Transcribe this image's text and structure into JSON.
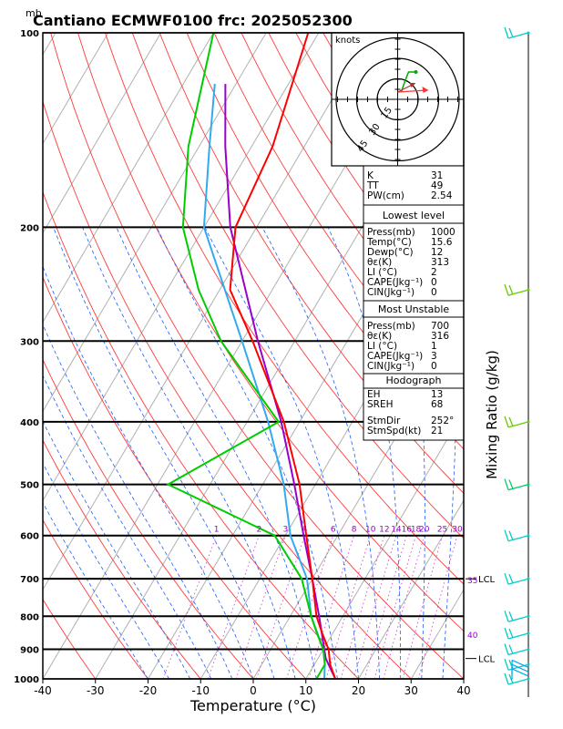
{
  "header": {
    "unit_label": "mb",
    "title": "Cantiano ECMWF0100  frc: 2025052300"
  },
  "chart_data": {
    "type": "skewt",
    "xlabel": "Temperature (°C)",
    "ylabel": "Mixing Ratio (g/kg)",
    "xlim": [
      -40,
      40
    ],
    "ylim": [
      1000,
      100
    ],
    "x_ticks": [
      -40,
      -30,
      -20,
      -10,
      0,
      10,
      20,
      30,
      40
    ],
    "pressure_levels": [
      1000,
      900,
      800,
      700,
      600,
      500,
      400,
      300,
      200,
      100
    ],
    "mixing_ratio_labels": [
      "1",
      "2",
      "3",
      "4",
      "6",
      "8",
      "10",
      "12",
      "14",
      "16",
      "18",
      "20",
      "25",
      "30"
    ],
    "extra_labels": {
      "theta_35": "35",
      "theta_40": "40"
    },
    "lcl_label": "LCL",
    "temperature_profile": {
      "color": "#ff0000",
      "points": [
        [
          1000,
          15.6
        ],
        [
          950,
          13
        ],
        [
          900,
          11
        ],
        [
          850,
          8
        ],
        [
          800,
          5
        ],
        [
          700,
          0
        ],
        [
          600,
          -6
        ],
        [
          500,
          -13
        ],
        [
          400,
          -23
        ],
        [
          300,
          -38
        ],
        [
          250,
          -48
        ],
        [
          200,
          -54
        ],
        [
          150,
          -56
        ],
        [
          100,
          -62
        ]
      ]
    },
    "dewpoint_profile": {
      "color": "#00cc00",
      "points": [
        [
          1000,
          12
        ],
        [
          950,
          12
        ],
        [
          900,
          10
        ],
        [
          850,
          7
        ],
        [
          800,
          4
        ],
        [
          700,
          -2
        ],
        [
          600,
          -12
        ],
        [
          500,
          -38
        ],
        [
          400,
          -24
        ],
        [
          300,
          -44
        ],
        [
          250,
          -54
        ],
        [
          200,
          -64
        ],
        [
          150,
          -72
        ],
        [
          100,
          -80
        ]
      ]
    },
    "parcel_profile": {
      "color": "#9900cc",
      "points": [
        [
          1000,
          15.6
        ],
        [
          930,
          11.5
        ],
        [
          900,
          10.2
        ],
        [
          800,
          5.5
        ],
        [
          700,
          0.0
        ],
        [
          600,
          -6.5
        ],
        [
          500,
          -14
        ],
        [
          400,
          -23.5
        ],
        [
          300,
          -37
        ],
        [
          200,
          -55
        ],
        [
          150,
          -65
        ],
        [
          120,
          -72
        ]
      ]
    },
    "wetbulb_profile": {
      "color": "#33aaee",
      "points": [
        [
          1000,
          13.5
        ],
        [
          950,
          12
        ],
        [
          900,
          10
        ],
        [
          800,
          4
        ],
        [
          700,
          -1
        ],
        [
          600,
          -9
        ],
        [
          500,
          -16
        ],
        [
          400,
          -26
        ],
        [
          300,
          -40
        ],
        [
          200,
          -60
        ],
        [
          150,
          -68
        ],
        [
          120,
          -74
        ]
      ]
    },
    "hodograph": {
      "label": "knots",
      "ring_labels": [
        "15",
        "30",
        "45"
      ],
      "storm_vector": {
        "dir_deg": 252,
        "speed_kt": 21,
        "color": "#ff3333"
      },
      "trace_color": "#00aa00"
    },
    "indices_table": {
      "top": [
        [
          "K",
          "31"
        ],
        [
          "TT",
          "49"
        ],
        [
          "PW(cm)",
          "2.54"
        ]
      ],
      "lowest_level": {
        "header": "Lowest level",
        "rows": [
          [
            "Press(mb)",
            "1000"
          ],
          [
            "Temp(°C)",
            "15.6"
          ],
          [
            "Dewp(°C)",
            "12"
          ],
          [
            "θε(K)",
            "313"
          ],
          [
            "LI  (°C)",
            "2"
          ],
          [
            "CAPE(Jkg⁻¹)",
            "0"
          ],
          [
            "CIN(Jkg⁻¹)",
            "0"
          ]
        ]
      },
      "most_unstable": {
        "header": "Most Unstable",
        "rows": [
          [
            "Press(mb)",
            "700"
          ],
          [
            "θε(K)",
            "316"
          ],
          [
            "LI  (°C)",
            "1"
          ],
          [
            "CAPE(Jkg⁻¹)",
            "3"
          ],
          [
            "CIN(Jkg⁻¹)",
            "0"
          ]
        ]
      },
      "hodograph_box": {
        "header": "Hodograph",
        "rows": [
          [
            "EH",
            "13"
          ],
          [
            "SREH",
            "68"
          ]
        ],
        "rows2": [
          [
            "StmDir",
            "252°"
          ],
          [
            "StmSpd(kt)",
            "21"
          ]
        ]
      }
    },
    "wind_barbs": [
      {
        "p": 100,
        "color": "#00cccc"
      },
      {
        "p": 250,
        "color": "#66cc00"
      },
      {
        "p": 400,
        "color": "#66cc00"
      },
      {
        "p": 500,
        "color": "#00cc66"
      },
      {
        "p": 600,
        "color": "#00cccc"
      },
      {
        "p": 700,
        "color": "#00cccc"
      },
      {
        "p": 800,
        "color": "#00cccc"
      },
      {
        "p": 850,
        "color": "#00cccc"
      },
      {
        "p": 900,
        "color": "#00cccc"
      },
      {
        "p": 950,
        "color": "#00cccc"
      },
      {
        "p": 1000,
        "color": "#00cccc"
      }
    ]
  }
}
